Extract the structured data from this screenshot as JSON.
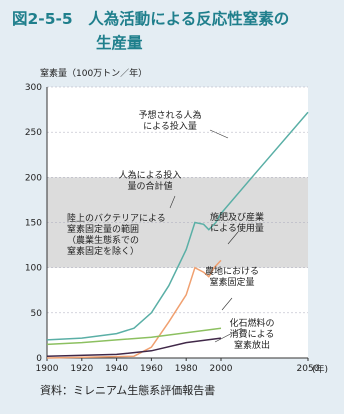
{
  "chart_data": {
    "type": "line",
    "title_lines": [
      "図2-5-5　人為活動による反応性窒素の",
      "生産量"
    ],
    "y_label": "窒素量（100万トン／年）",
    "x_unit": "(年)",
    "source": "資料：ミレニアム生態系評価報告書",
    "xlim": [
      1900,
      2050
    ],
    "xticks": [
      1900,
      1920,
      1940,
      1960,
      1980,
      2000,
      2050
    ],
    "ylim": [
      0,
      300
    ],
    "yticks": [
      0,
      50,
      100,
      150,
      200,
      250,
      300
    ],
    "shaded_range": [
      100,
      200
    ],
    "series": [
      {
        "name": "人為による投入量の合計値",
        "color": "#5aafa6",
        "x": [
          1900,
          1920,
          1940,
          1950,
          1960,
          1970,
          1980,
          1985,
          1990,
          1993,
          1997,
          2000
        ],
        "values": [
          20,
          22,
          27,
          33,
          50,
          80,
          120,
          150,
          148,
          142,
          150,
          160
        ]
      },
      {
        "name": "予想される人為による投入量",
        "color": "#5aafa6",
        "x": [
          2000,
          2020,
          2050
        ],
        "values": [
          160,
          205,
          272
        ]
      },
      {
        "name": "施肥及び産業による使用量",
        "color": "#f0a070",
        "x": [
          1900,
          1950,
          1960,
          1970,
          1980,
          1985,
          1990,
          1993,
          1996,
          2000
        ],
        "values": [
          0,
          2,
          12,
          40,
          70,
          100,
          95,
          90,
          100,
          108
        ]
      },
      {
        "name": "農地における窒素固定量",
        "color": "#8cc060",
        "x": [
          1900,
          1920,
          1940,
          1960,
          1980,
          2000
        ],
        "values": [
          15,
          17,
          20,
          23,
          28,
          33
        ]
      },
      {
        "name": "化石燃料の消費による窒素放出",
        "color": "#402848",
        "x": [
          1900,
          1940,
          1960,
          1980,
          2000
        ],
        "values": [
          2,
          4,
          8,
          17,
          22
        ]
      }
    ],
    "annotations": [
      [
        "予想される人為",
        "による投入量"
      ],
      [
        "人為による投入",
        "量の合計値"
      ],
      [
        "陸上のバクテリアによる",
        "窒素固定量の範囲",
        "（農業生態系での",
        "窒素固定を除く）"
      ],
      [
        "施肥及び産業",
        "による使用量"
      ],
      [
        "農地における",
        "窒素固定量"
      ],
      [
        "化石燃料の",
        "消費による",
        "窒素放出"
      ]
    ]
  }
}
